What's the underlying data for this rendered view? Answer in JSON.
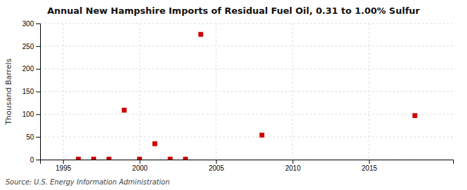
{
  "chart_data": {
    "type": "scatter",
    "title": "Annual New Hampshire Imports of Residual Fuel Oil, 0.31 to 1.00% Sulfur",
    "ylabel": "Thousand Barrels",
    "annotations": [
      "Source: U.S. Energy Information Administration"
    ],
    "x": [
      1996,
      1997,
      1998,
      1999,
      2000,
      2001,
      2002,
      2003,
      2004,
      2008,
      2018
    ],
    "values": [
      1,
      1,
      1,
      109,
      1,
      35,
      1,
      1,
      276,
      54,
      97
    ],
    "color": "#cc0000",
    "marker": "square",
    "xlim": [
      1993.5,
      2020.5
    ],
    "ylim": [
      0,
      300
    ],
    "xticks": [
      1995,
      2000,
      2005,
      2010,
      2015
    ],
    "yticks": [
      0,
      50,
      100,
      150,
      200,
      250,
      300
    ],
    "grid": true
  }
}
